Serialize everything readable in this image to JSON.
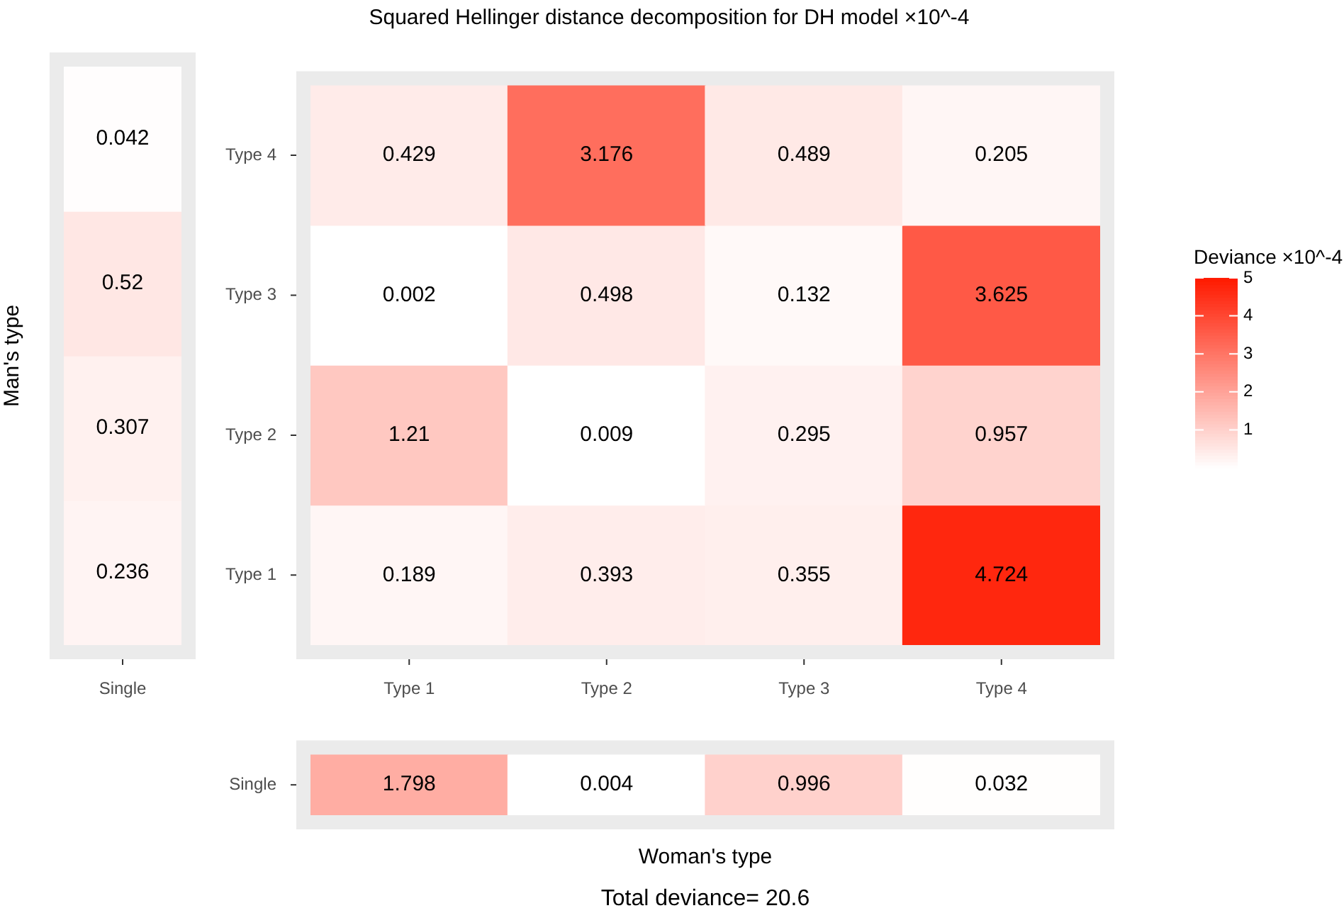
{
  "chart_data": [
    {
      "type": "heatmap",
      "ylabel": "Man's type",
      "categories": [
        "Single"
      ],
      "y_categories": [
        null,
        null,
        null,
        null
      ],
      "tick_labels": "x",
      "data_labels": true,
      "cells": [
        [
          0.042
        ],
        [
          0.52
        ],
        [
          0.307
        ],
        [
          0.236
        ]
      ]
    },
    {
      "type": "heatmap",
      "title": "Squared Hellinger distance decomposition for DH model ×10^-4",
      "categories": [
        "Type 1",
        "Type 2",
        "Type 3",
        "Type 4"
      ],
      "y_categories": [
        "Type 4",
        "Type 3",
        "Type 2",
        "Type 1"
      ],
      "data_labels": true,
      "cells": [
        [
          0.429,
          3.176,
          0.489,
          0.205
        ],
        [
          0.002,
          0.498,
          0.132,
          3.625
        ],
        [
          1.21,
          0.009,
          0.295,
          0.957
        ],
        [
          0.189,
          0.393,
          0.355,
          4.724
        ]
      ],
      "clabel": "Deviance ×10^-4",
      "clim": [
        0,
        5
      ],
      "cticks": [
        1,
        2,
        3,
        4,
        5
      ]
    },
    {
      "type": "heatmap",
      "xlabel": "Woman's type",
      "categories": [
        null,
        null,
        null,
        null
      ],
      "y_categories": [
        "Single"
      ],
      "tick_labels": "y",
      "data_labels": true,
      "cells": [
        [
          1.798,
          0.004,
          0.996,
          0.032
        ]
      ],
      "annotations": [
        "Total deviance= 20.6"
      ]
    }
  ]
}
